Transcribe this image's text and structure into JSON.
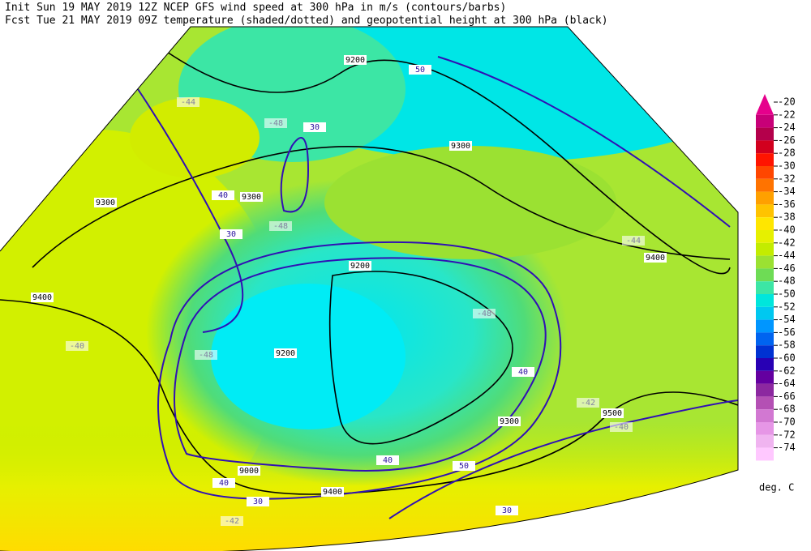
{
  "header": {
    "line1": "Init  Sun 19 MAY 2019 12Z  NCEP GFS wind speed at 300 hPa in m/s (contours/barbs)",
    "line2": "Fcst Tue 21 MAY 2019 09Z  temperature (shaded/dotted) and geopotential height at 300 hPa (black)"
  },
  "colorbar": {
    "levels": [
      -20,
      -22,
      -24,
      -26,
      -28,
      -30,
      -32,
      -34,
      -36,
      -38,
      -40,
      -42,
      -44,
      -46,
      -48,
      -50,
      -52,
      -54,
      -56,
      -58,
      -60,
      -62,
      -64,
      -66,
      -68,
      -70,
      -72,
      -74
    ],
    "colors": [
      "#e6008c",
      "#c80078",
      "#b4004b",
      "#d2001e",
      "#ff1400",
      "#ff4600",
      "#ff7300",
      "#ffa000",
      "#ffc300",
      "#ffe600",
      "#e6f000",
      "#c3ec00",
      "#9be132",
      "#6edc55",
      "#3ce6a5",
      "#00e6dc",
      "#00c8f0",
      "#0096ff",
      "#0064f0",
      "#0032d2",
      "#2800b4",
      "#6400a0",
      "#8c28a0",
      "#b450b4",
      "#d278d2",
      "#e696e6",
      "#f0b4f0",
      "#ffc8ff"
    ],
    "unit": "deg. C"
  },
  "contour_labels": [
    "9200",
    "9300",
    "9300",
    "9400",
    "9400",
    "9200",
    "9200",
    "9300",
    "9300",
    "9400",
    "9500",
    "9000",
    "30",
    "30",
    "40",
    "50",
    "40",
    "30",
    "30",
    "40",
    "50",
    "40",
    "-48",
    "-44",
    "-48",
    "-48",
    "-48",
    "-40",
    "-42",
    "-42",
    "-40",
    "-44"
  ]
}
